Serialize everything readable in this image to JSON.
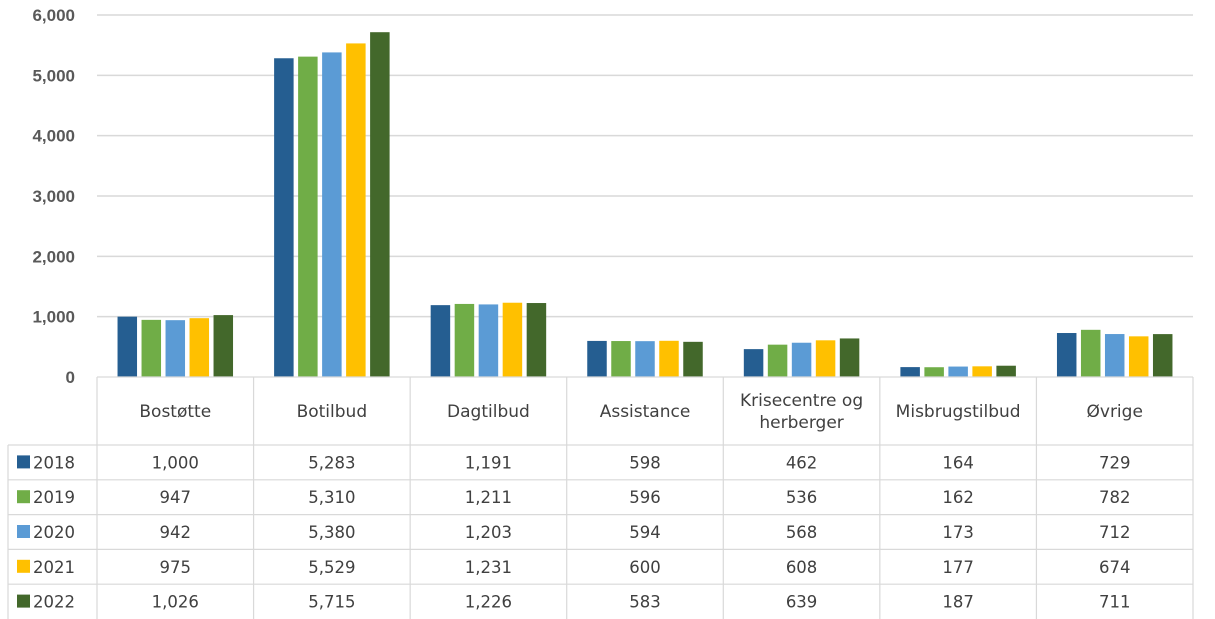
{
  "chart_data": {
    "type": "bar",
    "title": "",
    "xlabel": "",
    "ylabel": "",
    "ylim": [
      0,
      6000
    ],
    "yticks": [
      "0",
      "1,000",
      "2,000",
      "3,000",
      "4,000",
      "5,000",
      "6,000"
    ],
    "grid": true,
    "legend": "data-table",
    "categories": [
      "Bostøtte",
      "Botilbud",
      "Dagtilbud",
      "Assistance",
      "Krisecentre og herberger",
      "Misbrugstilbud",
      "Øvrige"
    ],
    "category_lines": [
      [
        "Bostøtte"
      ],
      [
        "Botilbud"
      ],
      [
        "Dagtilbud"
      ],
      [
        "Assistance"
      ],
      [
        "Krisecentre og",
        "herberger"
      ],
      [
        "Misbrugstilbud"
      ],
      [
        "Øvrige"
      ]
    ],
    "series": [
      {
        "name": "2018",
        "color": "#255E91",
        "values": [
          1000,
          5283,
          1191,
          598,
          462,
          164,
          729
        ],
        "labels": [
          "1,000",
          "5,283",
          "1,191",
          "598",
          "462",
          "164",
          "729"
        ]
      },
      {
        "name": "2019",
        "color": "#70AD47",
        "values": [
          947,
          5310,
          1211,
          596,
          536,
          162,
          782
        ],
        "labels": [
          "947",
          "5,310",
          "1,211",
          "596",
          "536",
          "162",
          "782"
        ]
      },
      {
        "name": "2020",
        "color": "#5B9BD5",
        "values": [
          942,
          5380,
          1203,
          594,
          568,
          173,
          712
        ],
        "labels": [
          "942",
          "5,380",
          "1,203",
          "594",
          "568",
          "173",
          "712"
        ]
      },
      {
        "name": "2021",
        "color": "#FFC000",
        "values": [
          975,
          5529,
          1231,
          600,
          608,
          177,
          674
        ],
        "labels": [
          "975",
          "5,529",
          "1,231",
          "600",
          "608",
          "177",
          "674"
        ]
      },
      {
        "name": "2022",
        "color": "#43682B",
        "values": [
          1026,
          5715,
          1226,
          583,
          639,
          187,
          711
        ],
        "labels": [
          "1,026",
          "5,715",
          "1,226",
          "583",
          "639",
          "187",
          "711"
        ]
      }
    ]
  }
}
